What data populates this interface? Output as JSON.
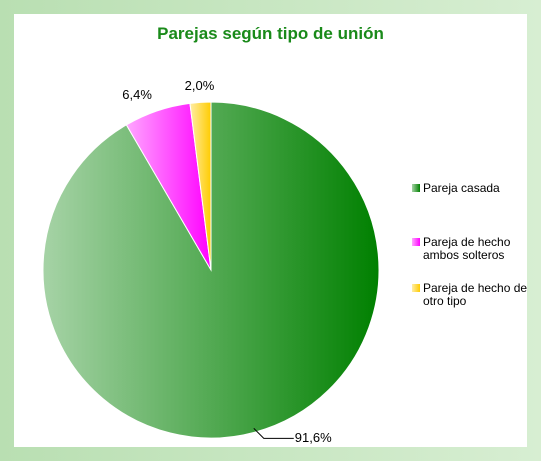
{
  "chart_data": {
    "type": "pie",
    "title": "Parejas según tipo de unión",
    "categories": [
      "Pareja casada",
      "Pareja de hecho ambos solteros",
      "Pareja de hecho de otro tipo"
    ],
    "values": [
      91.6,
      6.4,
      2.0
    ],
    "value_labels": [
      "91,6%",
      "6,4%",
      "2,0%"
    ],
    "colors": [
      "#008000",
      "#ff00ff",
      "#ffcc00"
    ],
    "legend": "right"
  }
}
